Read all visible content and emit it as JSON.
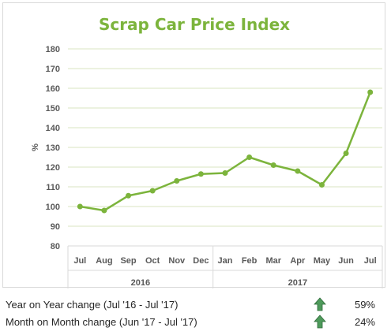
{
  "chart_data": {
    "type": "line",
    "title": "Scrap Car Price Index",
    "ylabel": "%",
    "ylim": [
      80,
      180
    ],
    "yticks": [
      80,
      90,
      100,
      110,
      120,
      130,
      140,
      150,
      160,
      170,
      180
    ],
    "grid": true,
    "categories": [
      "Jul",
      "Aug",
      "Sep",
      "Oct",
      "Nov",
      "Dec",
      "Jan",
      "Feb",
      "Mar",
      "Apr",
      "May",
      "Jun",
      "Jul"
    ],
    "groups": [
      {
        "label": "2016",
        "span": 6
      },
      {
        "label": "2017",
        "span": 7
      }
    ],
    "series": [
      {
        "values": [
          100,
          98,
          105.5,
          108,
          113,
          116.5,
          117,
          125,
          121,
          118,
          111,
          127,
          158
        ]
      }
    ],
    "colors": {
      "line": "#7cb43c",
      "grid": "#d8e6c0",
      "title": "#7cb43c"
    }
  },
  "stats": [
    {
      "label": "Year on Year change (Jul '16 - Jul '17)",
      "value": "59%",
      "icon": "up-arrow-icon"
    },
    {
      "label": "Month on Month change (Jun '17 - Jul '17)",
      "value": "24%",
      "icon": "up-arrow-icon"
    }
  ],
  "arrow_color": "#4e9a5b"
}
